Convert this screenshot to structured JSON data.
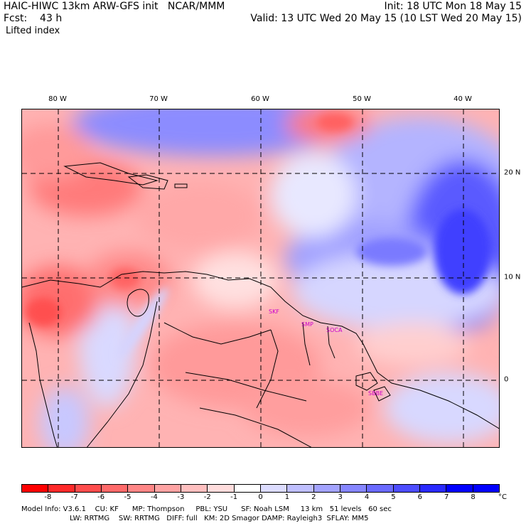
{
  "header": {
    "left_line1": "HAIC-HIWC 13km ARW-GFS init   NCAR/MMM",
    "left_line2": "Fcst:    43 h",
    "right_line1": "Init: 18 UTC Mon 18 May 15",
    "right_line2": "Valid: 13 UTC Wed 20 May 15 (10 LST Wed 20 May 15)",
    "field_name": "Lifted index"
  },
  "map": {
    "lon_labels": [
      "80 W",
      "70 W",
      "60 W",
      "50 W",
      "40 W"
    ],
    "lat_labels": [
      "20 N",
      "10 N",
      "0"
    ],
    "stations": [
      "SKF",
      "SMP",
      "SOCA",
      "SBBE"
    ]
  },
  "colorbar": {
    "colors": [
      "#ff0000",
      "#ff2a2a",
      "#ff4d4d",
      "#ff6a6a",
      "#ff8686",
      "#ffa3a3",
      "#ffbfbf",
      "#ffdcdc",
      "#ffffff",
      "#dcdcff",
      "#bfbfff",
      "#a3a3ff",
      "#8686ff",
      "#6a6aff",
      "#4d4dff",
      "#2a2aff",
      "#0000ff"
    ],
    "labels": [
      "-8",
      "-7",
      "-6",
      "-5",
      "-4",
      "-3",
      "-2",
      "-1",
      "0",
      "1",
      "2",
      "3",
      "4",
      "5",
      "6",
      "7",
      "8"
    ],
    "unit": "°C"
  },
  "footer": {
    "line1": "Model Info: V3.6.1    CU: KF      MP: Thompson     PBL: YSU      SF: Noah LSM     13 km   51 levels   60 sec",
    "line2": "LW: RRTMG    SW: RRTMG   DIFF: full   KM: 2D Smagor DAMP: Rayleigh3  SFLAY: MM5"
  }
}
